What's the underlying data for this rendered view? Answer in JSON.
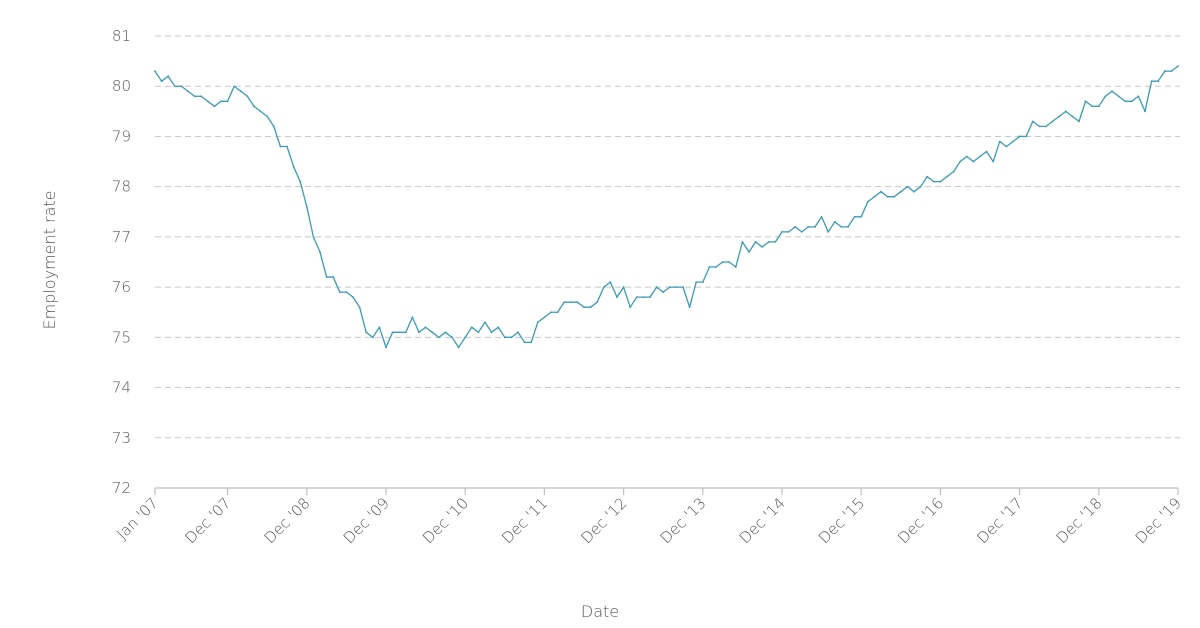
{
  "chart_data": {
    "type": "line",
    "title": "",
    "xlabel": "Date",
    "ylabel": "Employment rate",
    "ylim": [
      72,
      81
    ],
    "y_ticks": [
      "72",
      "73",
      "74",
      "75",
      "76",
      "77",
      "78",
      "79",
      "80",
      "81"
    ],
    "x_ticks": [
      {
        "label": "Jan '07",
        "date": "2007-01"
      },
      {
        "label": "Dec '07",
        "date": "2007-12"
      },
      {
        "label": "Dec '08",
        "date": "2008-12"
      },
      {
        "label": "Dec '09",
        "date": "2009-12"
      },
      {
        "label": "Dec '10",
        "date": "2010-12"
      },
      {
        "label": "Dec '11",
        "date": "2011-12"
      },
      {
        "label": "Dec '12",
        "date": "2012-12"
      },
      {
        "label": "Dec '13",
        "date": "2013-12"
      },
      {
        "label": "Dec '14",
        "date": "2014-12"
      },
      {
        "label": "Dec '15",
        "date": "2015-12"
      },
      {
        "label": "Dec '16",
        "date": "2016-12"
      },
      {
        "label": "Dec '17",
        "date": "2017-12"
      },
      {
        "label": "Dec '18",
        "date": "2018-12"
      },
      {
        "label": "Dec '19",
        "date": "2019-12"
      }
    ],
    "grid": true,
    "line_color": "#3a9bb3",
    "x_start": "2007-01",
    "x_end": "2019-12",
    "series": [
      {
        "values": [
          80.3,
          80.1,
          80.2,
          80.0,
          80.0,
          79.9,
          79.8,
          79.8,
          79.7,
          79.6,
          79.7,
          79.7,
          80.0,
          79.9,
          79.8,
          79.6,
          79.5,
          79.4,
          79.2,
          78.8,
          78.8,
          78.4,
          78.1,
          77.6,
          77.0,
          76.7,
          76.2,
          76.2,
          75.9,
          75.9,
          75.8,
          75.6,
          75.1,
          75.0,
          75.2,
          74.8,
          75.1,
          75.1,
          75.1,
          75.4,
          75.1,
          75.2,
          75.1,
          75.0,
          75.1,
          75.0,
          74.8,
          75.0,
          75.2,
          75.1,
          75.3,
          75.1,
          75.2,
          75.0,
          75.0,
          75.1,
          74.9,
          74.9,
          75.3,
          75.4,
          75.5,
          75.5,
          75.7,
          75.7,
          75.7,
          75.6,
          75.6,
          75.7,
          76.0,
          76.1,
          75.8,
          76.0,
          75.6,
          75.8,
          75.8,
          75.8,
          76.0,
          75.9,
          76.0,
          76.0,
          76.0,
          75.6,
          76.1,
          76.1,
          76.4,
          76.4,
          76.5,
          76.5,
          76.4,
          76.9,
          76.7,
          76.9,
          76.8,
          76.9,
          76.9,
          77.1,
          77.1,
          77.2,
          77.1,
          77.2,
          77.2,
          77.4,
          77.1,
          77.3,
          77.2,
          77.2,
          77.4,
          77.4,
          77.7,
          77.8,
          77.9,
          77.8,
          77.8,
          77.9,
          78.0,
          77.9,
          78.0,
          78.2,
          78.1,
          78.1,
          78.2,
          78.3,
          78.5,
          78.6,
          78.5,
          78.6,
          78.7,
          78.5,
          78.9,
          78.8,
          78.9,
          79.0,
          79.0,
          79.3,
          79.2,
          79.2,
          79.3,
          79.4,
          79.5,
          79.4,
          79.3,
          79.7,
          79.6,
          79.6,
          79.8,
          79.9,
          79.8,
          79.7,
          79.7,
          79.8,
          79.5,
          80.1,
          80.1,
          80.3,
          80.3,
          80.4
        ]
      }
    ]
  }
}
